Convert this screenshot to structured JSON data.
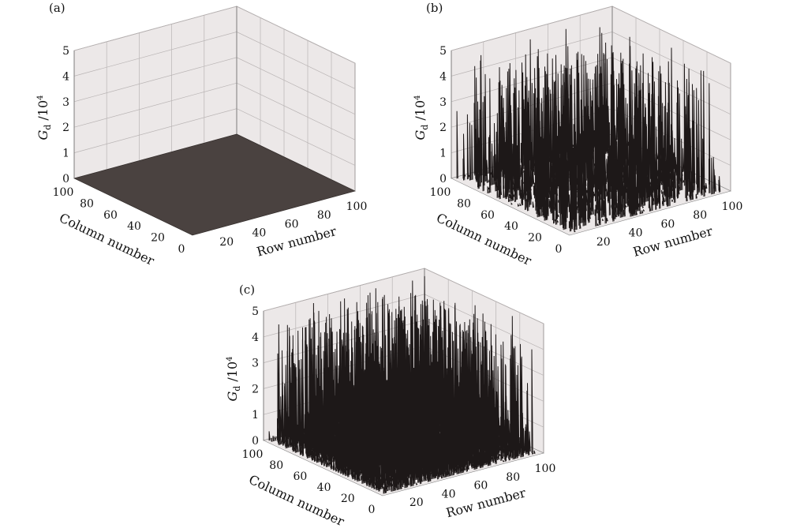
{
  "chart_data": [
    {
      "panel_label": "(a)",
      "type": "surface3d",
      "x_label": "Row number",
      "y_label": "Column number",
      "z_label": "G",
      "z_label_subscript": "d",
      "z_label_suffix": " /10",
      "z_label_exponent": "4",
      "xlim": [
        0,
        100
      ],
      "ylim": [
        0,
        100
      ],
      "zlim": [
        0,
        5
      ],
      "x_ticks": [
        "20",
        "40",
        "60",
        "80",
        "100"
      ],
      "y_ticks": [
        "0",
        "20",
        "40",
        "60",
        "80",
        "100"
      ],
      "z_ticks": [
        "0",
        "1",
        "2",
        "3",
        "4",
        "5"
      ],
      "grid": true,
      "surface": "flat",
      "z_level": 0,
      "peak_z": 0
    },
    {
      "panel_label": "(b)",
      "type": "surface3d",
      "x_label": "Row number",
      "y_label": "Column number",
      "z_label": "G",
      "z_label_subscript": "d",
      "z_label_suffix": " /10",
      "z_label_exponent": "4",
      "xlim": [
        0,
        100
      ],
      "ylim": [
        0,
        100
      ],
      "zlim": [
        0,
        5
      ],
      "x_ticks": [
        "20",
        "40",
        "60",
        "80",
        "100"
      ],
      "y_ticks": [
        "0",
        "20",
        "40",
        "60",
        "80",
        "100"
      ],
      "z_ticks": [
        "0",
        "1",
        "2",
        "3",
        "4",
        "5"
      ],
      "grid": true,
      "surface": "sparse-spikes",
      "spike_fraction": 0.4,
      "peak_z": 4.9
    },
    {
      "panel_label": "(c)",
      "type": "surface3d",
      "x_label": "Row number",
      "y_label": "Column number",
      "z_label": "G",
      "z_label_subscript": "d",
      "z_label_suffix": " /10",
      "z_label_exponent": "4",
      "xlim": [
        0,
        100
      ],
      "ylim": [
        0,
        100
      ],
      "zlim": [
        0,
        5
      ],
      "x_ticks": [
        "20",
        "40",
        "60",
        "80",
        "100"
      ],
      "y_ticks": [
        "0",
        "20",
        "40",
        "60",
        "80",
        "100"
      ],
      "z_ticks": [
        "0",
        "1",
        "2",
        "3",
        "4",
        "5"
      ],
      "grid": true,
      "surface": "dense-spikes",
      "spike_fraction": 0.85,
      "peak_z": 4.95
    }
  ]
}
